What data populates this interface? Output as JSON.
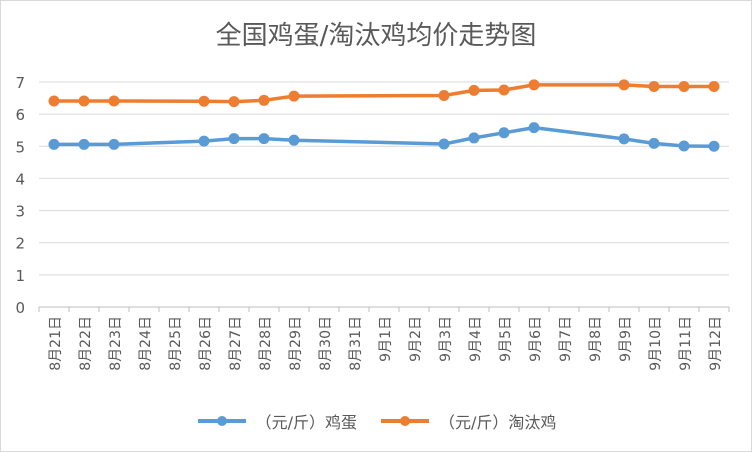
{
  "chart_data": {
    "type": "line",
    "title": "全国鸡蛋/淘汰鸡均价走势图",
    "categories": [
      "8月21日",
      "8月22日",
      "8月23日",
      "8月24日",
      "8月25日",
      "8月26日",
      "8月27日",
      "8月28日",
      "8月29日",
      "8月30日",
      "8月31日",
      "9月1日",
      "9月2日",
      "9月3日",
      "9月4日",
      "9月5日",
      "9月6日",
      "9月7日",
      "9月8日",
      "9月9日",
      "9月10日",
      "9月11日",
      "9月12日"
    ],
    "ylim": [
      0,
      7
    ],
    "yticks": [
      0,
      1,
      2,
      3,
      4,
      5,
      6,
      7
    ],
    "grid": true,
    "legend_position": "bottom",
    "series": [
      {
        "name": "（元/斤）鸡蛋",
        "color": "#5B9BD5",
        "values": [
          5.06,
          5.06,
          5.06,
          null,
          null,
          5.16,
          5.24,
          5.24,
          5.19,
          null,
          null,
          null,
          null,
          5.07,
          5.26,
          5.42,
          5.58,
          null,
          null,
          5.23,
          5.09,
          5.01,
          5.0
        ]
      },
      {
        "name": "（元/斤）淘汰鸡",
        "color": "#ED7D31",
        "values": [
          6.41,
          6.41,
          6.41,
          null,
          null,
          6.4,
          6.39,
          6.43,
          6.56,
          null,
          null,
          null,
          null,
          6.58,
          6.74,
          6.75,
          6.91,
          null,
          null,
          6.91,
          6.86,
          6.86,
          6.86
        ]
      }
    ]
  }
}
